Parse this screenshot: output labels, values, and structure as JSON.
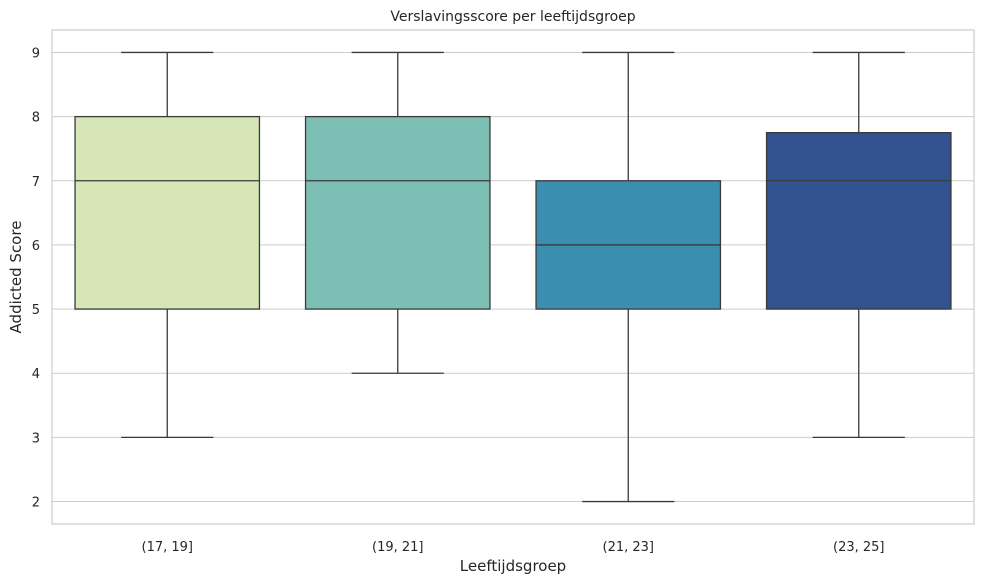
{
  "chart_data": {
    "type": "box",
    "title": "Verslavingsscore per leeftijdsgroep",
    "xlabel": "Leeftijdsgroep",
    "ylabel": "Addicted Score",
    "ylim": [
      1.65,
      9.35
    ],
    "yticks": [
      2,
      3,
      4,
      5,
      6,
      7,
      8,
      9
    ],
    "grid": "horizontal",
    "categories": [
      "(17, 19]",
      "(19, 21]",
      "(21, 23]",
      "(23, 25]"
    ],
    "boxes": [
      {
        "category": "(17, 19]",
        "min": 3,
        "q1": 5,
        "median": 7,
        "q3": 8,
        "max": 9,
        "color": "#d6e6b7"
      },
      {
        "category": "(19, 21]",
        "min": 4,
        "q1": 5,
        "median": 7,
        "q3": 8,
        "max": 9,
        "color": "#7ebfb5"
      },
      {
        "category": "(21, 23]",
        "min": 2,
        "q1": 5,
        "median": 6,
        "q3": 7,
        "max": 9,
        "color": "#3a8fb0"
      },
      {
        "category": "(23, 25]",
        "min": 3,
        "q1": 5,
        "median": 7,
        "q3": 7.75,
        "max": 9,
        "color": "#32538f"
      }
    ]
  }
}
